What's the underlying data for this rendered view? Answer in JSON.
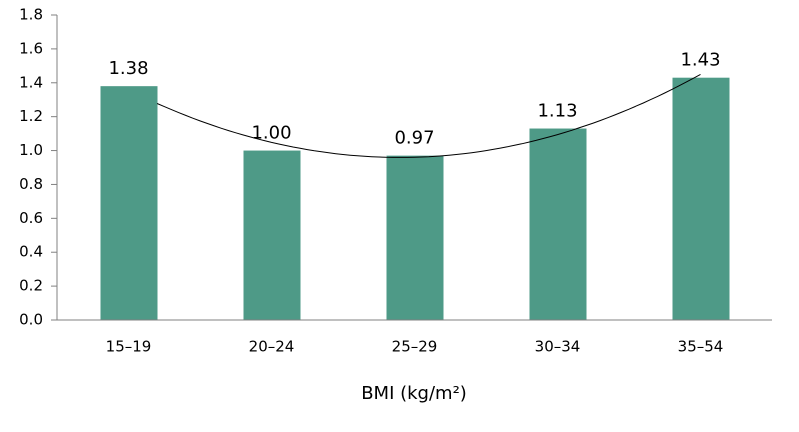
{
  "chart_data": {
    "type": "bar",
    "x_label": "BMI (kg/m²)",
    "categories": [
      "15–19",
      "20–24",
      "25–29",
      "30–34",
      "35–54"
    ],
    "values": [
      1.38,
      1.0,
      0.97,
      1.13,
      1.43
    ],
    "value_labels": [
      "1.38",
      "1.00",
      "0.97",
      "1.13",
      "1.43"
    ],
    "color": "#4e9a87",
    "ylim": [
      0,
      1.8
    ],
    "yticks": [
      {
        "value": 0,
        "label": "0.0"
      },
      0.2,
      0.4,
      0.6,
      0.8,
      {
        "value": 1,
        "label": "1.0"
      },
      1.2,
      1.4,
      1.6,
      1.8
    ],
    "trendline": "polynomial"
  }
}
